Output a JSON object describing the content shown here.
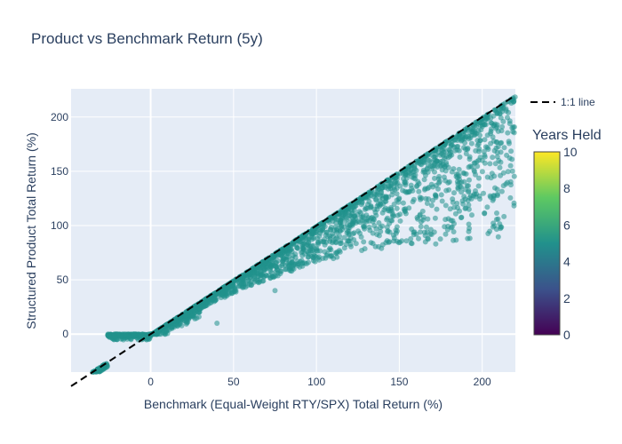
{
  "chart_data": {
    "type": "scatter",
    "title": "Product vs Benchmark Return (5y)",
    "xlabel": "Benchmark (Equal-Weight RTY/SPX) Total Return (%)",
    "ylabel": "Structured Product Total Return (%)",
    "xlim": [
      -48,
      220
    ],
    "ylim": [
      -35,
      226
    ],
    "xticks": [
      0,
      50,
      100,
      150,
      200
    ],
    "yticks": [
      0,
      50,
      100,
      150,
      200
    ],
    "grid": true,
    "marker_color": "#21918c",
    "marker_opacity": 0.55,
    "reference_line": {
      "name": "1:1 line",
      "points": [
        [
          -48,
          -48
        ],
        [
          220,
          220
        ]
      ],
      "style": "dashed",
      "color": "#000000"
    },
    "colorbar": {
      "title": "Years Held",
      "range": [
        0,
        10
      ],
      "ticks": [
        0,
        2,
        4,
        6,
        8,
        10
      ],
      "colorscale": [
        "#440154",
        "#3b528b",
        "#21918c",
        "#5ec962",
        "#fde725"
      ]
    },
    "scatter_summary": "Dense cloud of points: follows y = x for x above ~0 (upper envelope) with downside scatter below the 1:1 line; flat floor at y = 0 for benchmark returns roughly -20 to 0; follows 1:1 line again below about -25.",
    "sample_points": [
      {
        "x": -45,
        "y": -45
      },
      {
        "x": -35,
        "y": -35
      },
      {
        "x": -28,
        "y": -28
      },
      {
        "x": -22,
        "y": -2
      },
      {
        "x": -15,
        "y": 0
      },
      {
        "x": -10,
        "y": 0
      },
      {
        "x": -5,
        "y": 0
      },
      {
        "x": 10,
        "y": 8
      },
      {
        "x": 30,
        "y": 28
      },
      {
        "x": 40,
        "y": 10
      },
      {
        "x": 60,
        "y": 55
      },
      {
        "x": 75,
        "y": 40
      },
      {
        "x": 90,
        "y": 85
      },
      {
        "x": 100,
        "y": 95
      },
      {
        "x": 120,
        "y": 100
      },
      {
        "x": 140,
        "y": 135
      },
      {
        "x": 172,
        "y": 83
      },
      {
        "x": 180,
        "y": 170
      },
      {
        "x": 200,
        "y": 195
      },
      {
        "x": 210,
        "y": 160
      },
      {
        "x": 218,
        "y": 190
      }
    ]
  }
}
